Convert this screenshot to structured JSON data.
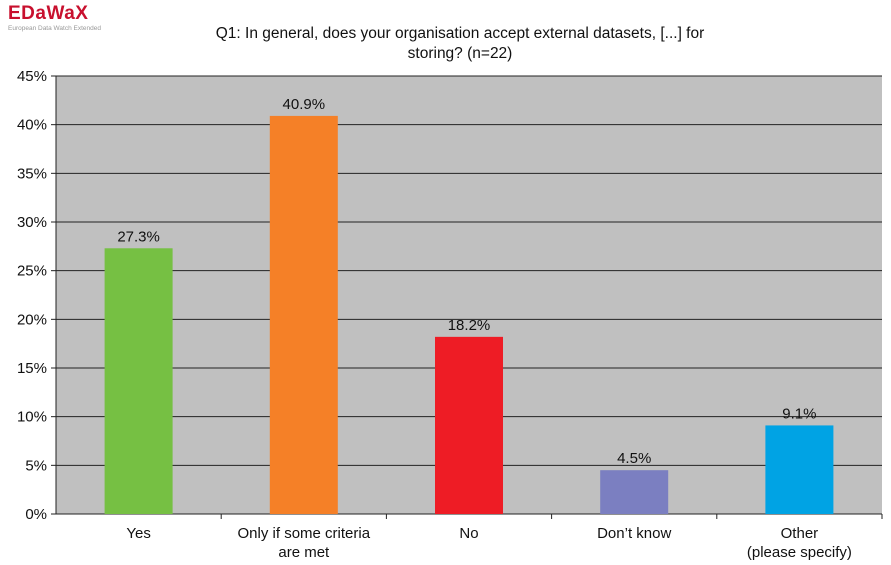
{
  "logo": {
    "name": "EDaWaX",
    "subtitle": "European Data Watch Extended"
  },
  "chart_data": {
    "type": "bar",
    "title_lines": [
      "Q1: In general, does your organisation accept external datasets, [...] for",
      "storing? (n=22)"
    ],
    "categories": [
      [
        "Yes"
      ],
      [
        "Only if some criteria",
        "are met"
      ],
      [
        "No"
      ],
      [
        "Don’t know"
      ],
      [
        "Other",
        "(please specify)"
      ]
    ],
    "values": [
      27.3,
      40.9,
      18.2,
      4.5,
      9.1
    ],
    "data_labels": [
      "27.3%",
      "40.9%",
      "18.2%",
      "4.5%",
      "9.1%"
    ],
    "colors": [
      "#76c043",
      "#f58027",
      "#ee1c25",
      "#7b7fc1",
      "#00a3e4"
    ],
    "plot_background": "#c0c0c0",
    "ylim": [
      0,
      45
    ],
    "yticks": [
      0,
      5,
      10,
      15,
      20,
      25,
      30,
      35,
      40,
      45
    ],
    "ytick_labels": [
      "0%",
      "5%",
      "10%",
      "15%",
      "20%",
      "25%",
      "30%",
      "35%",
      "40%",
      "45%"
    ],
    "grid": true,
    "legend": "none"
  }
}
